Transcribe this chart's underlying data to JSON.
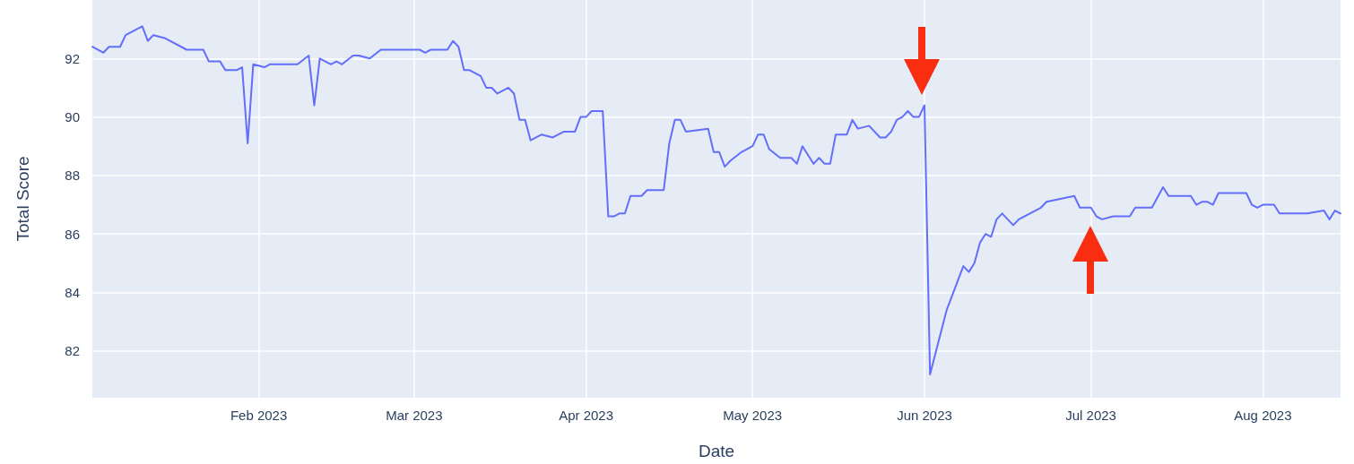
{
  "chart_data": {
    "type": "line",
    "xlabel": "Date",
    "ylabel": "Total Score",
    "x": [
      "2023-01-02",
      "2023-01-04",
      "2023-01-05",
      "2023-01-07",
      "2023-01-08",
      "2023-01-10",
      "2023-01-11",
      "2023-01-12",
      "2023-01-13",
      "2023-01-15",
      "2023-01-19",
      "2023-01-22",
      "2023-01-23",
      "2023-01-25",
      "2023-01-26",
      "2023-01-28",
      "2023-01-29",
      "2023-01-30",
      "2023-01-31",
      "2023-02-02",
      "2023-02-03",
      "2023-02-08",
      "2023-02-10",
      "2023-02-11",
      "2023-02-12",
      "2023-02-14",
      "2023-02-15",
      "2023-02-16",
      "2023-02-18",
      "2023-02-19",
      "2023-02-21",
      "2023-02-23",
      "2023-03-02",
      "2023-03-03",
      "2023-03-04",
      "2023-03-07",
      "2023-03-08",
      "2023-03-09",
      "2023-03-10",
      "2023-03-11",
      "2023-03-13",
      "2023-03-14",
      "2023-03-15",
      "2023-03-16",
      "2023-03-17",
      "2023-03-18",
      "2023-03-19",
      "2023-03-20",
      "2023-03-21",
      "2023-03-22",
      "2023-03-24",
      "2023-03-26",
      "2023-03-27",
      "2023-03-28",
      "2023-03-30",
      "2023-03-31",
      "2023-04-01",
      "2023-04-02",
      "2023-04-04",
      "2023-04-05",
      "2023-04-06",
      "2023-04-07",
      "2023-04-08",
      "2023-04-09",
      "2023-04-11",
      "2023-04-12",
      "2023-04-15",
      "2023-04-16",
      "2023-04-17",
      "2023-04-18",
      "2023-04-19",
      "2023-04-23",
      "2023-04-24",
      "2023-04-25",
      "2023-04-26",
      "2023-04-27",
      "2023-04-29",
      "2023-05-01",
      "2023-05-02",
      "2023-05-03",
      "2023-05-04",
      "2023-05-06",
      "2023-05-08",
      "2023-05-09",
      "2023-05-10",
      "2023-05-12",
      "2023-05-13",
      "2023-05-14",
      "2023-05-15",
      "2023-05-16",
      "2023-05-18",
      "2023-05-19",
      "2023-05-20",
      "2023-05-22",
      "2023-05-24",
      "2023-05-25",
      "2023-05-26",
      "2023-05-27",
      "2023-05-28",
      "2023-05-29",
      "2023-05-30",
      "2023-05-31",
      "2023-06-01",
      "2023-06-02",
      "2023-06-05",
      "2023-06-08",
      "2023-06-09",
      "2023-06-10",
      "2023-06-11",
      "2023-06-12",
      "2023-06-13",
      "2023-06-14",
      "2023-06-15",
      "2023-06-17",
      "2023-06-18",
      "2023-06-21",
      "2023-06-22",
      "2023-06-23",
      "2023-06-28",
      "2023-06-29",
      "2023-06-30",
      "2023-07-01",
      "2023-07-02",
      "2023-07-03",
      "2023-07-05",
      "2023-07-08",
      "2023-07-09",
      "2023-07-12",
      "2023-07-14",
      "2023-07-15",
      "2023-07-16",
      "2023-07-19",
      "2023-07-20",
      "2023-07-21",
      "2023-07-22",
      "2023-07-23",
      "2023-07-24",
      "2023-07-25",
      "2023-07-29",
      "2023-07-30",
      "2023-07-31",
      "2023-08-01",
      "2023-08-03",
      "2023-08-04",
      "2023-08-09",
      "2023-08-12",
      "2023-08-13",
      "2023-08-14",
      "2023-08-15"
    ],
    "series": [
      {
        "color": "#636efa",
        "values": [
          92.4,
          92.2,
          92.4,
          92.4,
          92.8,
          93.0,
          93.1,
          92.6,
          92.8,
          92.7,
          92.3,
          92.3,
          91.9,
          91.9,
          91.6,
          91.6,
          91.7,
          89.1,
          91.8,
          91.7,
          91.8,
          91.8,
          92.1,
          90.4,
          92.0,
          91.8,
          91.9,
          91.8,
          92.1,
          92.1,
          92.0,
          92.3,
          92.3,
          92.2,
          92.3,
          92.3,
          92.6,
          92.4,
          91.6,
          91.6,
          91.4,
          91.0,
          91.0,
          90.8,
          90.9,
          91.0,
          90.8,
          89.9,
          89.9,
          89.2,
          89.4,
          89.3,
          89.4,
          89.5,
          89.5,
          90.0,
          90.0,
          90.2,
          90.2,
          86.6,
          86.6,
          86.7,
          86.7,
          87.3,
          87.3,
          87.5,
          87.5,
          89.1,
          89.9,
          89.9,
          89.5,
          89.6,
          88.8,
          88.8,
          88.3,
          88.5,
          88.8,
          89.0,
          89.4,
          89.4,
          88.9,
          88.6,
          88.6,
          88.4,
          89.0,
          88.4,
          88.6,
          88.4,
          88.4,
          89.4,
          89.4,
          89.9,
          89.6,
          89.7,
          89.3,
          89.3,
          89.5,
          89.9,
          90.0,
          90.2,
          90.0,
          90.0,
          90.4,
          81.2,
          83.4,
          84.9,
          84.7,
          85.0,
          85.7,
          86.0,
          85.9,
          86.5,
          86.7,
          86.3,
          86.5,
          86.8,
          86.9,
          87.1,
          87.3,
          86.9,
          86.9,
          86.9,
          86.6,
          86.5,
          86.6,
          86.6,
          86.9,
          86.9,
          87.6,
          87.3,
          87.3,
          87.3,
          87.0,
          87.1,
          87.1,
          87.0,
          87.4,
          87.4,
          87.4,
          87.0,
          86.9,
          87.0,
          87.0,
          86.7,
          86.7,
          86.8,
          86.5,
          86.8,
          86.7
        ]
      }
    ],
    "xlim": [
      "2023-01-02",
      "2023-08-15"
    ],
    "xticks": [
      {
        "value": "2023-02-01",
        "label": "Feb 2023"
      },
      {
        "value": "2023-03-01",
        "label": "Mar 2023"
      },
      {
        "value": "2023-04-01",
        "label": "Apr 2023"
      },
      {
        "value": "2023-05-01",
        "label": "May 2023"
      },
      {
        "value": "2023-06-01",
        "label": "Jun 2023"
      },
      {
        "value": "2023-07-01",
        "label": "Jul 2023"
      },
      {
        "value": "2023-08-01",
        "label": "Aug 2023"
      }
    ],
    "ylim": [
      80.4,
      94.0
    ],
    "yticks": [
      82,
      84,
      86,
      88,
      90,
      92
    ],
    "grid": true,
    "marker": "none",
    "line_style": "solid"
  }
}
